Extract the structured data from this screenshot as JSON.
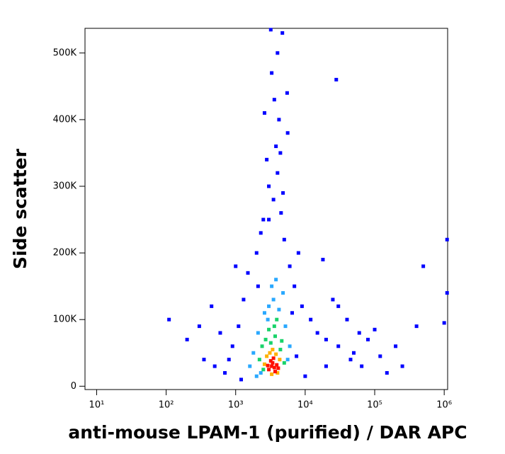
{
  "chart_data": {
    "type": "scatter",
    "x_label": "anti-mouse LPAM-1 (purified) / DAR APC",
    "y_label": "Side scatter",
    "x_scale": "log",
    "xlim": [
      6.8,
      1120000
    ],
    "ylim": [
      -5000,
      537000
    ],
    "xticks": [
      {
        "value": 10,
        "label": "10¹"
      },
      {
        "value": 100,
        "label": "10²"
      },
      {
        "value": 1000,
        "label": "10³"
      },
      {
        "value": 10000,
        "label": "10⁴"
      },
      {
        "value": 100000,
        "label": "10⁵"
      },
      {
        "value": 1000000,
        "label": "10⁶"
      }
    ],
    "yticks": [
      0,
      {
        "value": 100000,
        "label": "100K"
      },
      {
        "value": 200000,
        "label": "200K"
      },
      {
        "value": 300000,
        "label": "300K"
      },
      {
        "value": 400000,
        "label": "400K"
      },
      {
        "value": 500000,
        "label": "500K"
      }
    ],
    "series": [
      {
        "color": "#0000ff",
        "x": [
          700,
          900,
          1100,
          1300,
          800,
          1500,
          2000,
          2500,
          3000,
          3500,
          4000,
          4500,
          5000,
          3800,
          4200,
          3600,
          5500,
          4000,
          3200,
          4700,
          6000,
          7000,
          9000,
          12000,
          15000,
          20000,
          30000,
          50000,
          80000,
          120000,
          200000,
          400000,
          100000,
          60000,
          40000,
          25000,
          18000,
          30000,
          110,
          200,
          300,
          450,
          500,
          600,
          350,
          1000,
          2800,
          2300,
          8000,
          6500,
          1200,
          10000,
          20000,
          45000,
          150000,
          500000,
          1100000,
          1100000,
          250000,
          7500,
          5600,
          3300,
          2600,
          4400,
          1000000,
          3000,
          4800,
          2100,
          65000,
          28000
        ],
        "values": [
          20000,
          60000,
          90000,
          130000,
          40000,
          170000,
          200000,
          250000,
          300000,
          280000,
          320000,
          260000,
          220000,
          360000,
          400000,
          430000,
          440000,
          500000,
          535000,
          530000,
          180000,
          150000,
          120000,
          100000,
          80000,
          70000,
          60000,
          50000,
          70000,
          45000,
          60000,
          90000,
          85000,
          80000,
          100000,
          130000,
          190000,
          120000,
          100000,
          70000,
          90000,
          120000,
          30000,
          80000,
          40000,
          180000,
          340000,
          230000,
          200000,
          110000,
          10000,
          15000,
          30000,
          40000,
          20000,
          180000,
          140000,
          220000,
          30000,
          45000,
          380000,
          470000,
          410000,
          350000,
          95000,
          250000,
          290000,
          150000,
          30000,
          460000
        ]
      },
      {
        "color": "#29a8ff",
        "x": [
          1800,
          2100,
          2600,
          3000,
          3500,
          4200,
          5200,
          6000,
          1600,
          2300,
          3300,
          4800,
          5600,
          2000,
          2900,
          3800
        ],
        "values": [
          50000,
          80000,
          110000,
          120000,
          130000,
          115000,
          90000,
          60000,
          30000,
          20000,
          150000,
          140000,
          40000,
          15000,
          100000,
          160000
        ]
      },
      {
        "color": "#19d36a",
        "x": [
          2400,
          2700,
          3200,
          3700,
          4400,
          5000,
          2200,
          3000,
          3600,
          4600,
          2500,
          3900
        ],
        "values": [
          60000,
          70000,
          65000,
          75000,
          55000,
          35000,
          40000,
          85000,
          90000,
          68000,
          25000,
          100000
        ]
      },
      {
        "color": "#ffb000",
        "x": [
          2800,
          3100,
          3800,
          4300,
          2600,
          3400,
          4000,
          3300
        ],
        "values": [
          45000,
          50000,
          48000,
          40000,
          33000,
          55000,
          20000,
          18000
        ]
      },
      {
        "color": "#ff1000",
        "x": [
          3000,
          3300,
          3600,
          3900,
          3200,
          3700,
          3400,
          4100,
          2900,
          3500
        ],
        "values": [
          25000,
          30000,
          28000,
          32000,
          38000,
          22000,
          35000,
          27000,
          31000,
          42000
        ]
      }
    ]
  }
}
